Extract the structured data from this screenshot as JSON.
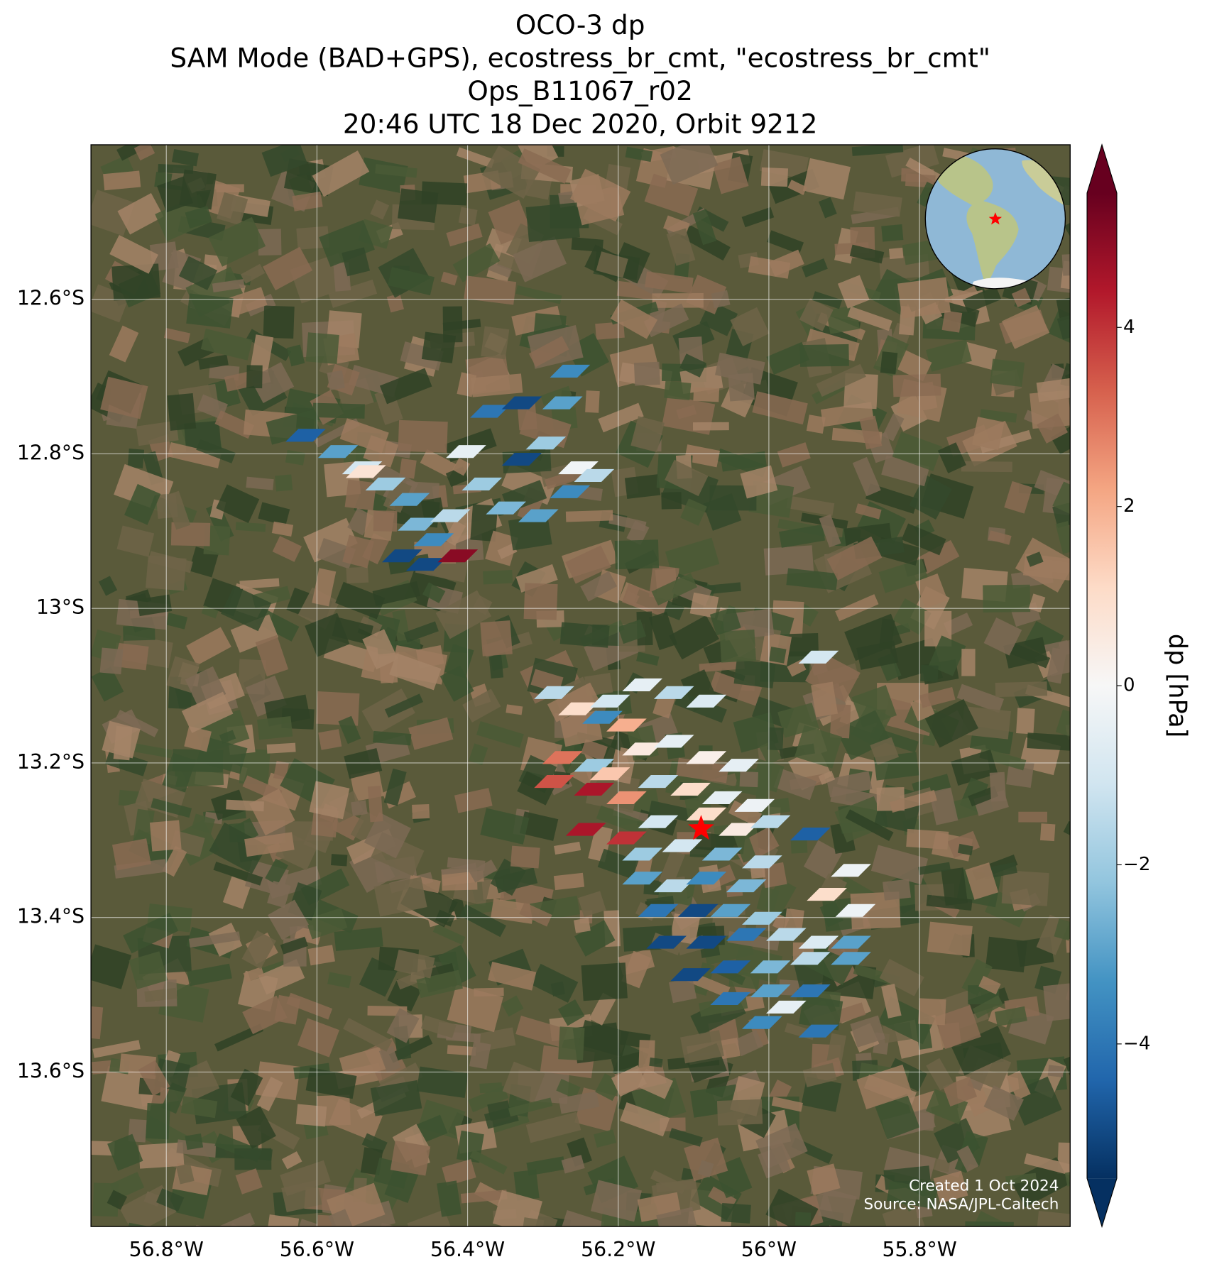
{
  "chart_data": {
    "type": "map",
    "title": [
      "OCO-3 dp",
      "SAM Mode (BAD+GPS), ecostress_br_cmt, \"ecostress_br_cmt\"",
      "Ops_B11067_r02",
      "20:46 UTC 18 Dec 2020, Orbit 9212"
    ],
    "xlim": [
      -56.9,
      -55.6
    ],
    "ylim": [
      -13.8,
      -12.4
    ],
    "xticks": [
      {
        "value": -56.8,
        "label": "56.8°W"
      },
      {
        "value": -56.6,
        "label": "56.6°W"
      },
      {
        "value": -56.4,
        "label": "56.4°W"
      },
      {
        "value": -56.2,
        "label": "56.2°W"
      },
      {
        "value": -56,
        "label": "56°W"
      },
      {
        "value": -55.8,
        "label": "55.8°W"
      }
    ],
    "yticks": [
      {
        "value": -12.6,
        "label": "12.6°S"
      },
      {
        "value": -12.8,
        "label": "12.8°S"
      },
      {
        "value": -13,
        "label": "13°S"
      },
      {
        "value": -13.2,
        "label": "13.2°S"
      },
      {
        "value": -13.4,
        "label": "13.4°S"
      },
      {
        "value": -13.6,
        "label": "13.6°S"
      }
    ],
    "grid": true,
    "colorbar": {
      "label": "dp [hPa]",
      "clim": [
        -5.5,
        5.5
      ],
      "ticks": [
        {
          "value": -4,
          "label": "−4"
        },
        {
          "value": -2,
          "label": "−2"
        },
        0,
        2,
        4
      ],
      "colormap": [
        "#053061",
        "#2166ac",
        "#4393c3",
        "#92c5de",
        "#d1e5f0",
        "#f7f7f7",
        "#fddbc7",
        "#f4a582",
        "#d6604d",
        "#b2182b",
        "#67001f"
      ]
    },
    "target": {
      "lon": -56.09,
      "lat": -13.285,
      "color": "#ff0000"
    },
    "soundings": {
      "lon": [
        -56.615,
        -56.572,
        -56.54,
        -56.509,
        -56.477,
        -56.535,
        -56.466,
        -56.445,
        -56.487,
        -56.455,
        -56.413,
        -56.402,
        -56.37,
        -56.328,
        -56.274,
        -56.264,
        -56.296,
        -56.253,
        -56.232,
        -56.328,
        -56.349,
        -56.306,
        -56.264,
        -56.423,
        -56.381,
        -55.934,
        -56.285,
        -56.253,
        -56.211,
        -56.168,
        -56.126,
        -56.083,
        -56.221,
        -56.189,
        -56.274,
        -56.232,
        -56.211,
        -56.168,
        -56.126,
        -56.083,
        -56.04,
        -56.285,
        -56.232,
        -56.189,
        -56.147,
        -56.104,
        -56.062,
        -56.019,
        -56.243,
        -56.189,
        -56.147,
        -56.083,
        -56.04,
        -55.998,
        -55.945,
        -56.168,
        -56.115,
        -56.062,
        -56.009,
        -56.168,
        -56.126,
        -56.083,
        -56.03,
        -55.891,
        -55.923,
        -55.885,
        -56.147,
        -56.094,
        -56.051,
        -56.009,
        -56.136,
        -56.083,
        -56.03,
        -55.977,
        -55.934,
        -55.891,
        -56.104,
        -56.051,
        -55.998,
        -55.945,
        -55.891,
        -56.051,
        -55.998,
        -55.977,
        -55.945,
        -56.009,
        -55.934
      ],
      "lat": [
        -12.776,
        -12.797,
        -12.818,
        -12.839,
        -12.859,
        -12.823,
        -12.891,
        -12.911,
        -12.932,
        -12.943,
        -12.932,
        -12.797,
        -12.745,
        -12.734,
        -12.734,
        -12.693,
        -12.786,
        -12.818,
        -12.828,
        -12.807,
        -12.87,
        -12.88,
        -12.849,
        -12.88,
        -12.839,
        -13.063,
        -13.109,
        -13.13,
        -13.12,
        -13.099,
        -13.109,
        -13.12,
        -13.141,
        -13.151,
        -13.193,
        -13.203,
        -13.214,
        -13.182,
        -13.172,
        -13.193,
        -13.203,
        -13.224,
        -13.234,
        -13.245,
        -13.224,
        -13.234,
        -13.245,
        -13.255,
        -13.286,
        -13.297,
        -13.276,
        -13.266,
        -13.286,
        -13.276,
        -13.292,
        -13.318,
        -13.307,
        -13.318,
        -13.328,
        -13.349,
        -13.359,
        -13.349,
        -13.359,
        -13.339,
        -13.37,
        -13.391,
        -13.391,
        -13.391,
        -13.391,
        -13.401,
        -13.432,
        -13.432,
        -13.422,
        -13.422,
        -13.432,
        -13.432,
        -13.474,
        -13.464,
        -13.464,
        -13.453,
        -13.453,
        -13.505,
        -13.495,
        -13.516,
        -13.495,
        -13.536,
        -13.547
      ],
      "dp": [
        -4.5,
        -3,
        -1,
        -2,
        -3,
        0.8,
        -2.5,
        -3.5,
        -5,
        -5,
        5,
        -0.5,
        -4,
        -5,
        -3,
        -3.5,
        -2,
        -0.2,
        -1.5,
        -5,
        -2.5,
        -3,
        -3.5,
        -1.5,
        -2,
        -1,
        -1.5,
        1,
        -1,
        -0.5,
        -1.5,
        -0.8,
        -3.5,
        2,
        3,
        -2,
        1.5,
        0.5,
        -0.5,
        0.3,
        -0.5,
        3.5,
        4.5,
        2.5,
        -1.5,
        1,
        -0.5,
        -0.3,
        4.5,
        4,
        -1,
        1,
        0.5,
        -1.5,
        -4.5,
        -2,
        -1,
        -2.5,
        -1.5,
        -3,
        -1.5,
        -3.5,
        -2.5,
        -0.3,
        1,
        -0.3,
        -4,
        -5,
        -3,
        -2,
        -5,
        -5,
        -4,
        -1.5,
        -0.8,
        -3,
        -5,
        -4.5,
        -2.5,
        -1.5,
        -3,
        -4,
        -3,
        -0.5,
        -4,
        -3.5,
        -4
      ]
    },
    "credits": [
      "Created 1 Oct 2024",
      "Source: NASA/JPL-Caltech"
    ]
  }
}
